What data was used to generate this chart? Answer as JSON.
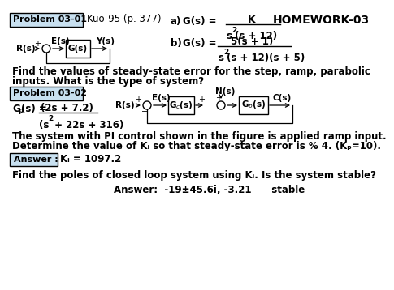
{
  "title": "HOMEWORK-03",
  "prob1_label": "Problem 03-01",
  "prob1_subtitle": "Kuo-95 (p. 377)",
  "prob2_label": "Problem 03-02",
  "answer_label": "Answer :",
  "background": "#ffffff",
  "box_bg": "#c8e0f0",
  "answer_bg": "#c8e0f0",
  "line1": "Find the values of steady-state error for the step, ramp, parabolic",
  "line2": "inputs. What is the type of system?",
  "line3": "The system with PI control shown in the figure is applied ramp input.",
  "line4": "Determine the value of Kᵢ so that steady-state error is % 4. (Kₚ=10).",
  "line5": "Find the poles of closed loop system using Kᵢ. Is the system stable?",
  "line6": "Answer:  -19±45.6i, -3.21      stable",
  "answer_ki": "Kᵢ = 1097.2"
}
